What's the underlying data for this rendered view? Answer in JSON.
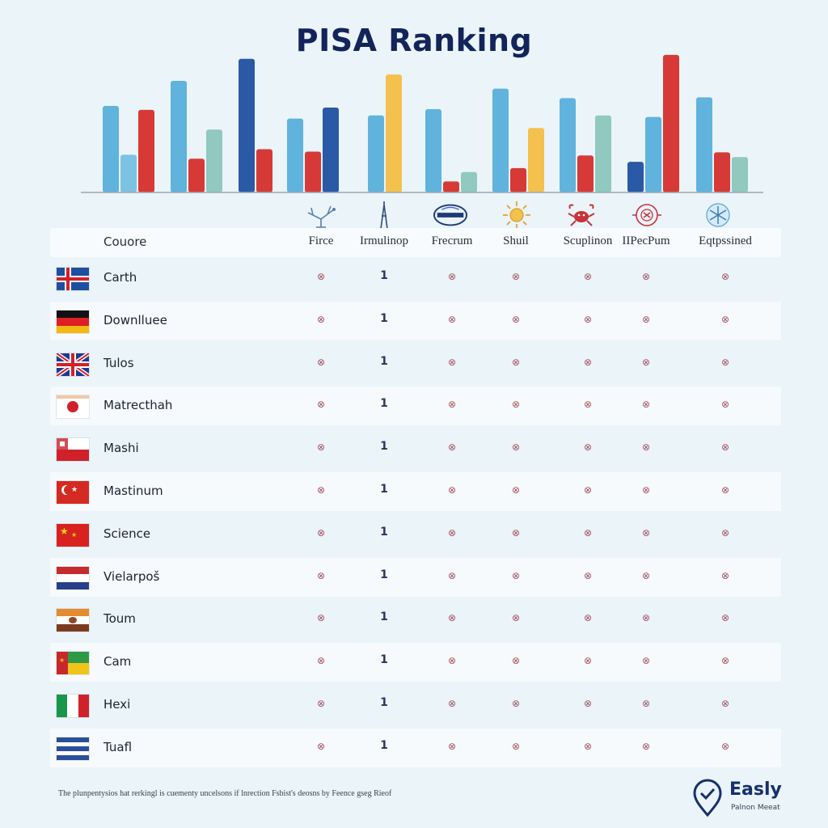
{
  "chart_data": {
    "type": "bar",
    "title": "PISA Ranking",
    "categories": [
      "",
      "",
      "",
      "",
      "",
      "",
      "",
      "",
      "",
      ""
    ],
    "series_colors": [
      "#5fb3dc",
      "#d73a36",
      "#8fc9c0",
      "#2a5aa6",
      "#f4c04e"
    ],
    "groups": [
      {
        "bars": [
          {
            "value": 110,
            "color": "#5fb3dc"
          },
          {
            "value": 48,
            "color": "#7cc3e3"
          },
          {
            "value": 105,
            "color": "#d73a36"
          }
        ]
      },
      {
        "bars": [
          {
            "value": 142,
            "color": "#5fb3dc"
          },
          {
            "value": 43,
            "color": "#d73a36"
          },
          {
            "value": 80,
            "color": "#8fc9c0"
          }
        ]
      },
      {
        "bars": [
          {
            "value": 170,
            "color": "#2a5aa6"
          },
          {
            "value": 55,
            "color": "#d73a36"
          }
        ]
      },
      {
        "bars": [
          {
            "value": 94,
            "color": "#5fb3dc"
          },
          {
            "value": 52,
            "color": "#d73a36"
          },
          {
            "value": 108,
            "color": "#2a5aa6"
          }
        ]
      },
      {
        "bars": [
          {
            "value": 98,
            "color": "#5fb3dc"
          },
          {
            "value": 150,
            "color": "#f4c04e"
          }
        ]
      },
      {
        "bars": [
          {
            "value": 106,
            "color": "#5fb3dc"
          },
          {
            "value": 14,
            "color": "#d73a36"
          },
          {
            "value": 26,
            "color": "#8fc9c0"
          }
        ]
      },
      {
        "bars": [
          {
            "value": 132,
            "color": "#5fb3dc"
          },
          {
            "value": 31,
            "color": "#d73a36"
          },
          {
            "value": 82,
            "color": "#f4c04e"
          }
        ]
      },
      {
        "bars": [
          {
            "value": 120,
            "color": "#5fb3dc"
          },
          {
            "value": 47,
            "color": "#d73a36"
          },
          {
            "value": 98,
            "color": "#8fc9c0"
          }
        ]
      },
      {
        "bars": [
          {
            "value": 39,
            "color": "#2a5aa6"
          },
          {
            "value": 96,
            "color": "#5fb3dc"
          },
          {
            "value": 175,
            "color": "#d73a36"
          }
        ]
      },
      {
        "bars": [
          {
            "value": 121,
            "color": "#5fb3dc"
          },
          {
            "value": 51,
            "color": "#d73a36"
          },
          {
            "value": 45,
            "color": "#8fc9c0"
          }
        ]
      }
    ],
    "ylim": [
      0,
      180
    ],
    "grid": false,
    "xlabel": "",
    "ylabel": ""
  },
  "table": {
    "columns": [
      "Couore",
      "Firce",
      "Irmulinop",
      "Frecrum",
      "Shuil",
      "Scuplinon",
      "IIPecPum",
      "Eqtpssined"
    ],
    "column_icons": [
      "tree-icon",
      "tower-icon",
      "globe-badge-icon",
      "sun-icon",
      "crab-icon",
      "target-icon",
      "snowflake-icon"
    ],
    "rows": [
      {
        "country": "Carth",
        "flag": "iceland",
        "cells": [
          "⊗",
          "1",
          "⊗",
          "⊗",
          "⊗",
          "⊗",
          "⊗"
        ]
      },
      {
        "country": "Downlluee",
        "flag": "germany",
        "cells": [
          "⊗",
          "1",
          "⊗",
          "⊗",
          "⊗",
          "⊗",
          "⊗"
        ]
      },
      {
        "country": "Tulos",
        "flag": "uk",
        "cells": [
          "⊗",
          "1",
          "⊗",
          "⊗",
          "⊗",
          "⊗",
          "⊗"
        ]
      },
      {
        "country": "Matrecthah",
        "flag": "japan",
        "cells": [
          "⊗",
          "1",
          "⊗",
          "⊗",
          "⊗",
          "⊗",
          "⊗"
        ]
      },
      {
        "country": "Mashi",
        "flag": "red-white-canton",
        "cells": [
          "⊗",
          "1",
          "⊗",
          "⊗",
          "⊗",
          "⊗",
          "⊗"
        ]
      },
      {
        "country": "Mastinum",
        "flag": "red-star",
        "cells": [
          "⊗",
          "1",
          "⊗",
          "⊗",
          "⊗",
          "⊗",
          "⊗"
        ]
      },
      {
        "country": "Science",
        "flag": "china",
        "cells": [
          "⊗",
          "1",
          "⊗",
          "⊗",
          "⊗",
          "⊗",
          "⊗"
        ]
      },
      {
        "country": "Vielarpoš",
        "flag": "netherlands",
        "cells": [
          "⊗",
          "1",
          "⊗",
          "⊗",
          "⊗",
          "⊗",
          "⊗"
        ]
      },
      {
        "country": "Toum",
        "flag": "orange-white-brown",
        "cells": [
          "⊗",
          "1",
          "⊗",
          "⊗",
          "⊗",
          "⊗",
          "⊗"
        ]
      },
      {
        "country": "Cam",
        "flag": "red-green-yellow",
        "cells": [
          "⊗",
          "1",
          "⊗",
          "⊗",
          "⊗",
          "⊗",
          "⊗"
        ]
      },
      {
        "country": "Hexi",
        "flag": "italy",
        "cells": [
          "⊗",
          "1",
          "⊗",
          "⊗",
          "⊗",
          "⊗",
          "⊗"
        ]
      },
      {
        "country": "Tuafl",
        "flag": "blue-stripes",
        "cells": [
          "⊗",
          "1",
          "⊗",
          "⊗",
          "⊗",
          "⊗",
          "⊗"
        ]
      }
    ]
  },
  "footnote": "The plunpentysios hat rerkingl is cuementy uncelsons if lnrection Fsbist's deosns by Feence gseg Rieof",
  "logo": {
    "name": "Easly",
    "tagline": "Palnon Meeat",
    "icon": "map-pin-check-icon"
  }
}
